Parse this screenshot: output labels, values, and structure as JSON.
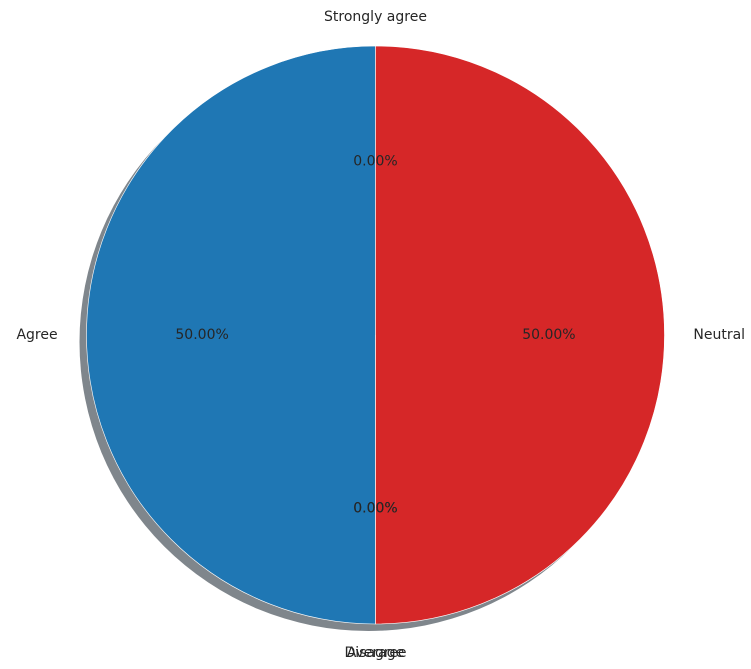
{
  "chart_data": {
    "type": "pie",
    "categories": [
      "Strongly agree",
      "Agree",
      "Disagree",
      "Average",
      "Neutral"
    ],
    "values": [
      0,
      50,
      0,
      0,
      50
    ],
    "percent_labels": [
      "0.00%",
      "50.00%",
      "0.00%",
      "0.00%",
      "50.00%"
    ],
    "colors": [
      "#2ca02c",
      "#1f77b4",
      "#9467bd",
      "#8c564b",
      "#d62728"
    ],
    "start_angle_deg": 90,
    "direction": "counterclockwise",
    "shadow": true,
    "legend": "none",
    "grid": false
  }
}
